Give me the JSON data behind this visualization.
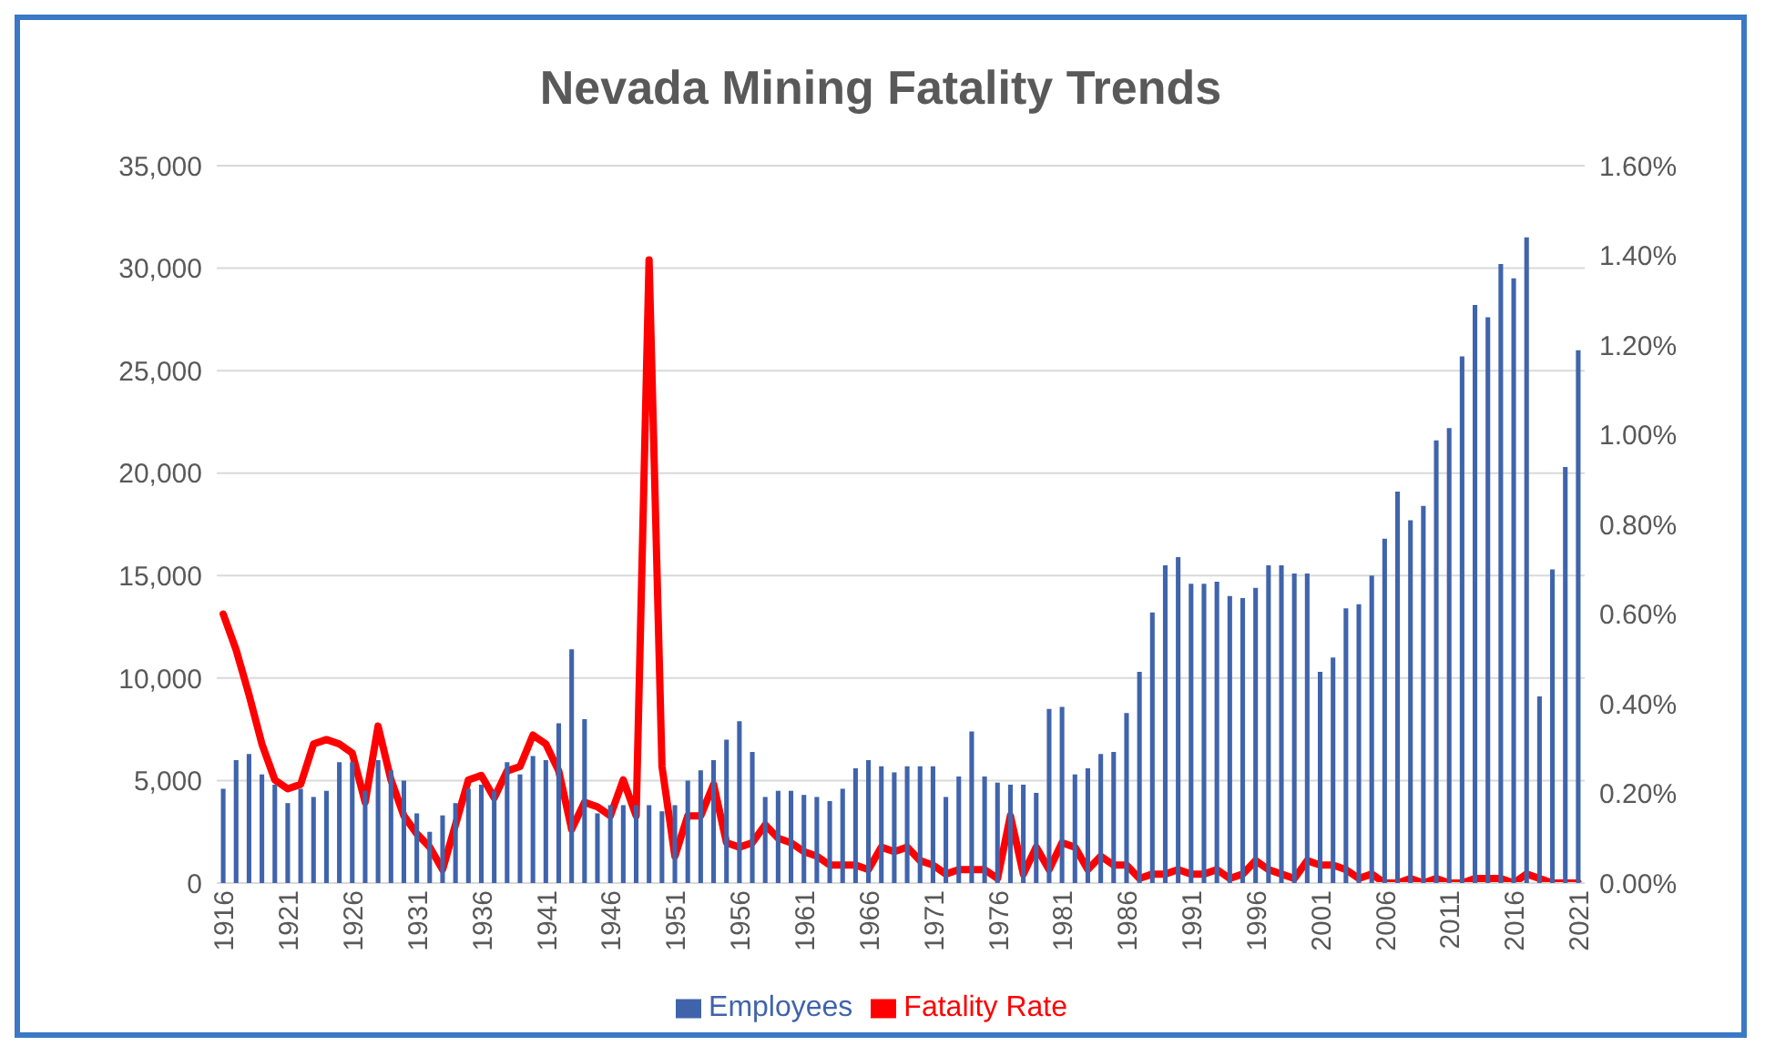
{
  "chart_data": {
    "type": "bar",
    "title": "Nevada Mining Fatality Trends",
    "categories": [
      "1916",
      null,
      null,
      null,
      null,
      "1921",
      null,
      null,
      null,
      null,
      "1926",
      null,
      null,
      null,
      null,
      "1931",
      null,
      null,
      null,
      null,
      "1936",
      null,
      null,
      null,
      null,
      "1941",
      null,
      null,
      null,
      null,
      "1946",
      null,
      null,
      null,
      null,
      "1951",
      null,
      null,
      null,
      null,
      "1956",
      null,
      null,
      null,
      null,
      "1961",
      null,
      null,
      null,
      null,
      "1966",
      null,
      null,
      null,
      null,
      "1971",
      null,
      null,
      null,
      null,
      "1976",
      null,
      null,
      null,
      null,
      "1981",
      null,
      null,
      null,
      null,
      "1986",
      null,
      null,
      null,
      null,
      "1991",
      null,
      null,
      null,
      null,
      "1996",
      null,
      null,
      null,
      null,
      "2001",
      null,
      null,
      null,
      null,
      "2006",
      null,
      null,
      null,
      null,
      "2011",
      null,
      null,
      null,
      null,
      "2016",
      null,
      null,
      null,
      null,
      "2021"
    ],
    "series": [
      {
        "name": "Employees",
        "color": "#4064ac",
        "values": [
          4600,
          6000,
          6300,
          5300,
          4800,
          3900,
          4600,
          4200,
          4500,
          5900,
          5900,
          4500,
          6000,
          5500,
          5000,
          3400,
          2500,
          3300,
          3900,
          4600,
          4800,
          4500,
          5900,
          5300,
          6200,
          6000,
          7800,
          11400,
          8000,
          3400,
          3800,
          3800,
          3800,
          3800,
          3500,
          3800,
          5000,
          5500,
          6000,
          7000,
          7900,
          6400,
          4200,
          4500,
          4500,
          4300,
          4200,
          4000,
          4600,
          5600,
          6000,
          5700,
          5400,
          5700,
          5700,
          5700,
          4200,
          5200,
          7400,
          5200,
          4900,
          4800,
          4800,
          4400,
          8500,
          8600,
          5300,
          5600,
          6300,
          6400,
          8300,
          10300,
          13200,
          15500,
          15900,
          14600,
          14600,
          14700,
          14000,
          13900,
          14400,
          15500,
          15500,
          15100,
          15100,
          10300,
          11000,
          13400,
          13600,
          15000,
          16800,
          19100,
          17700,
          18400,
          21600,
          22200,
          25700,
          28200,
          27600,
          30200,
          29500,
          31500,
          9100,
          15300,
          20300,
          26000
        ]
      },
      {
        "name": "Fatality Rate",
        "type": "line",
        "axis": "y2",
        "color": "#ff0000",
        "values": [
          0.6,
          0.52,
          0.42,
          0.31,
          0.23,
          0.21,
          0.22,
          0.31,
          0.32,
          0.31,
          0.29,
          0.18,
          0.35,
          0.23,
          0.15,
          0.11,
          0.08,
          0.03,
          0.13,
          0.23,
          0.24,
          0.19,
          0.25,
          0.26,
          0.33,
          0.31,
          0.25,
          0.12,
          0.18,
          0.17,
          0.15,
          0.23,
          0.15,
          1.39,
          0.26,
          0.06,
          0.15,
          0.15,
          0.22,
          0.09,
          0.08,
          0.09,
          0.13,
          0.1,
          0.09,
          0.07,
          0.06,
          0.04,
          0.04,
          0.04,
          0.03,
          0.08,
          0.07,
          0.08,
          0.05,
          0.04,
          0.02,
          0.03,
          0.03,
          0.03,
          0.01,
          0.15,
          0.02,
          0.08,
          0.03,
          0.09,
          0.08,
          0.03,
          0.06,
          0.04,
          0.04,
          0.01,
          0.02,
          0.02,
          0.03,
          0.02,
          0.02,
          0.03,
          0.01,
          0.02,
          0.05,
          0.03,
          0.02,
          0.01,
          0.05,
          0.04,
          0.04,
          0.03,
          0.01,
          0.02,
          0.0,
          0.0,
          0.01,
          0.0,
          0.01,
          0.0,
          0.0,
          0.01,
          0.01,
          0.01,
          0.0,
          0.02,
          0.01,
          0.0,
          0.0,
          0.0
        ]
      }
    ],
    "ylim": [
      0,
      35000
    ],
    "yticks": [
      {
        "value": 0,
        "label": "0"
      },
      {
        "value": 5000,
        "label": "5,000"
      },
      {
        "value": 10000,
        "label": "10,000"
      },
      {
        "value": 15000,
        "label": "15,000"
      },
      {
        "value": 20000,
        "label": "20,000"
      },
      {
        "value": 25000,
        "label": "25,000"
      },
      {
        "value": 30000,
        "label": "30,000"
      },
      {
        "value": 35000,
        "label": "35,000"
      }
    ],
    "y2lim": [
      0,
      1.6
    ],
    "y2ticks": [
      {
        "value": 0,
        "label": "0.00%"
      },
      {
        "value": 0.2,
        "label": "0.20%"
      },
      {
        "value": 0.4,
        "label": "0.40%"
      },
      {
        "value": 0.6,
        "label": "0.60%"
      },
      {
        "value": 0.8,
        "label": "0.80%"
      },
      {
        "value": 1.0,
        "label": "1.00%"
      },
      {
        "value": 1.2,
        "label": "1.20%"
      },
      {
        "value": 1.4,
        "label": "1.40%"
      },
      {
        "value": 1.6,
        "label": "1.60%"
      }
    ],
    "grid": "y",
    "legend": "bottom"
  }
}
